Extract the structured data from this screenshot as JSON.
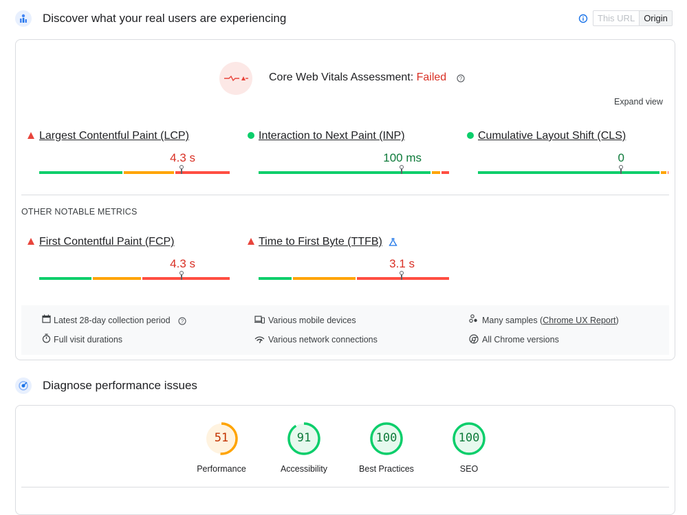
{
  "field": {
    "title": "Discover what your real users are experiencing",
    "toggle": {
      "this_url": "This URL",
      "origin": "Origin"
    },
    "assessment_label": "Core Web Vitals Assessment: ",
    "assessment_status": "Failed",
    "expand_view": "Expand view",
    "core_metrics": [
      {
        "title": "Largest Contentful Paint (LCP)",
        "value": "4.3 s",
        "status": "poor",
        "marker_fraction": 0.75
      },
      {
        "title": "Interaction to Next Paint (INP)",
        "value": "100 ms",
        "status": "good",
        "marker_fraction": 0.75
      },
      {
        "title": "Cumulative Layout Shift (CLS)",
        "value": "0",
        "status": "good",
        "marker_fraction": 0.75
      }
    ],
    "other_heading": "OTHER NOTABLE METRICS",
    "other_metrics": [
      {
        "title": "First Contentful Paint (FCP)",
        "value": "4.3 s",
        "status": "poor",
        "marker_fraction": 0.75
      },
      {
        "title": "Time to First Byte (TTFB)",
        "value": "3.1 s",
        "status": "poor",
        "marker_fraction": 0.75
      }
    ],
    "info": {
      "collection_period": "Latest 28-day collection period",
      "devices": "Various mobile devices",
      "samples_prefix": "Many samples (",
      "samples_link": "Chrome UX Report",
      "samples_suffix": ")",
      "visit": "Full visit durations",
      "network": "Various network connections",
      "chrome": "All Chrome versions"
    },
    "colors": {
      "good": "#0cce6b",
      "average": "#ffa400",
      "poor": "#ff4e42"
    }
  },
  "lab": {
    "title": "Diagnose performance issues",
    "scores": [
      {
        "label": "Performance",
        "score": "51",
        "value": 51,
        "level": "average"
      },
      {
        "label": "Accessibility",
        "score": "91",
        "value": 91,
        "level": "good"
      },
      {
        "label": "Best Practices",
        "score": "100",
        "value": 100,
        "level": "good"
      },
      {
        "label": "SEO",
        "score": "100",
        "value": 100,
        "level": "good"
      }
    ]
  }
}
